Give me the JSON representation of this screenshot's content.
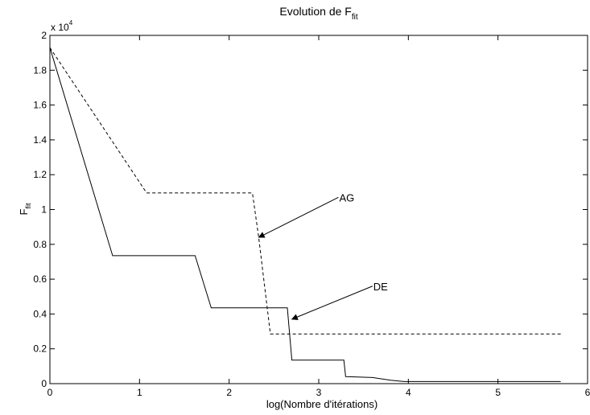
{
  "chart_data": {
    "type": "line",
    "title_main": "Evolution de F",
    "title_sub": "fit",
    "xlabel": "log(Nombre d'itérations)",
    "ylabel_main": "F",
    "ylabel_sub": "fit",
    "exponent_base": "x 10",
    "exponent_power": "4",
    "xlim": [
      0,
      6
    ],
    "ylim": [
      0,
      2
    ],
    "xticks": [
      0,
      1,
      2,
      3,
      4,
      5,
      6
    ],
    "yticks": [
      0,
      0.2,
      0.4,
      0.6,
      0.8,
      1,
      1.2,
      1.4,
      1.6,
      1.8,
      2
    ],
    "grid": false,
    "series": [
      {
        "name": "AG",
        "style": "dashed",
        "x": [
          0,
          1.08,
          2.26,
          2.33,
          2.46,
          5.7
        ],
        "y": [
          1.93,
          1.095,
          1.095,
          0.84,
          0.285,
          0.285
        ]
      },
      {
        "name": "DE",
        "style": "solid",
        "x": [
          0,
          0.7,
          1.62,
          1.8,
          2.65,
          2.7,
          3.28,
          3.3,
          3.6,
          3.8,
          3.95,
          5.7
        ],
        "y": [
          1.93,
          0.735,
          0.735,
          0.435,
          0.435,
          0.135,
          0.135,
          0.04,
          0.035,
          0.02,
          0.012,
          0.012
        ]
      }
    ],
    "annotations": [
      {
        "text": "AG",
        "label_at": [
          3.22,
          1.07
        ],
        "arrow_to": [
          2.33,
          0.84
        ]
      },
      {
        "text": "DE",
        "label_at": [
          3.6,
          0.56
        ],
        "arrow_to": [
          2.7,
          0.37
        ]
      }
    ]
  }
}
